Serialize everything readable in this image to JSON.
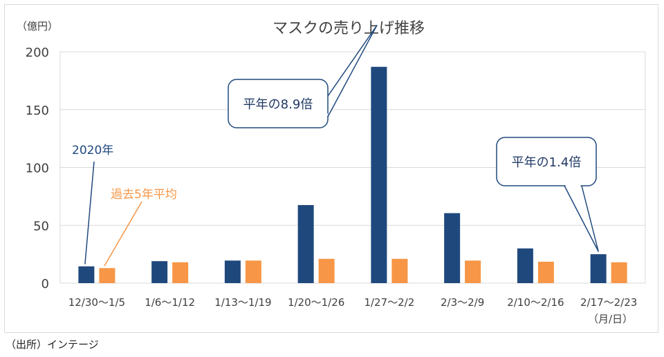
{
  "source": "（出所）インテージ",
  "chart_data": {
    "type": "bar",
    "title": "マスクの売り上げ推移",
    "ylabel": "（億円）",
    "xlabel": "（月/日）",
    "ylim": [
      0,
      200
    ],
    "yticks": [
      0,
      50,
      100,
      150,
      200
    ],
    "grid": true,
    "categories": [
      "12/30〜1/5",
      "1/6〜1/12",
      "1/13〜1/19",
      "1/20〜1/26",
      "1/27〜2/2",
      "2/3〜2/9",
      "2/10〜2/16",
      "2/17〜2/23"
    ],
    "series": [
      {
        "name": "2020年",
        "color": "#1f497d",
        "values": [
          14.5,
          19,
          19.5,
          67.5,
          187,
          60.5,
          30,
          25
        ]
      },
      {
        "name": "過去5年平均",
        "color": "#f79646",
        "values": [
          13,
          18,
          19.5,
          21,
          21,
          19.5,
          18.5,
          18
        ]
      }
    ],
    "annotations": [
      {
        "text": "平年の8.9倍",
        "category_index": 4
      },
      {
        "text": "平年の1.4倍",
        "category_index": 7
      }
    ]
  }
}
